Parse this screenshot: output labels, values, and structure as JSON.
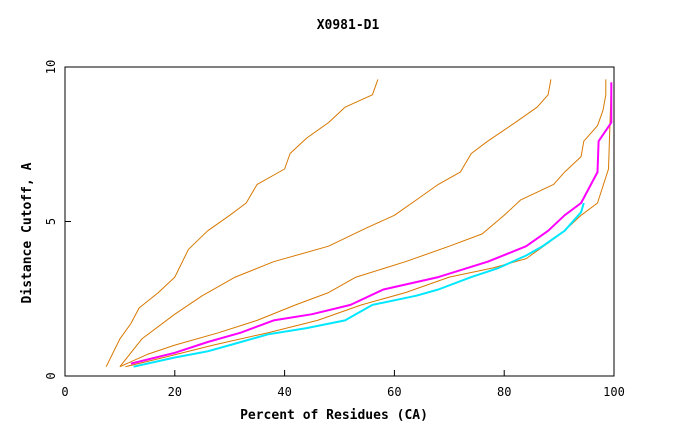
{
  "chart_data": {
    "type": "line",
    "title": "X0981-D1",
    "xlabel": "Percent of Residues (CA)",
    "ylabel": "Distance Cutoff, A",
    "xlim": [
      0,
      100
    ],
    "ylim": [
      0,
      10
    ],
    "x_ticks": [
      0,
      20,
      40,
      60,
      80,
      100
    ],
    "y_ticks": [
      0,
      5,
      10
    ],
    "x_tick_labels": [
      "0",
      "20",
      "40",
      "60",
      "80",
      "100"
    ],
    "y_tick_labels": [
      "0",
      "5",
      "10"
    ],
    "colors": {
      "reference": "#d87800",
      "highlight_1": "#ff00ff",
      "highlight_2": "#00e8ff",
      "axis": "#000000"
    },
    "series": [
      {
        "name": "orange-curve-1",
        "color": "#d87800",
        "points": [
          [
            7.5,
            0.3
          ],
          [
            10,
            1.2
          ],
          [
            12,
            1.7
          ],
          [
            13.5,
            2.2
          ],
          [
            17,
            2.7
          ],
          [
            20,
            3.2
          ],
          [
            22.5,
            4.1
          ],
          [
            26,
            4.7
          ],
          [
            30,
            5.2
          ],
          [
            33,
            5.6
          ],
          [
            35,
            6.2
          ],
          [
            40,
            6.7
          ],
          [
            41,
            7.2
          ],
          [
            44,
            7.7
          ],
          [
            48,
            8.2
          ],
          [
            51,
            8.7
          ],
          [
            56,
            9.1
          ],
          [
            57,
            9.6
          ]
        ]
      },
      {
        "name": "orange-curve-2",
        "color": "#d87800",
        "points": [
          [
            10,
            0.3
          ],
          [
            14,
            1.2
          ],
          [
            20,
            2.0
          ],
          [
            25,
            2.6
          ],
          [
            31,
            3.2
          ],
          [
            38,
            3.7
          ],
          [
            48,
            4.2
          ],
          [
            55,
            4.8
          ],
          [
            60,
            5.2
          ],
          [
            64,
            5.7
          ],
          [
            68,
            6.2
          ],
          [
            72,
            6.6
          ],
          [
            74,
            7.2
          ],
          [
            77,
            7.6
          ],
          [
            82,
            8.2
          ],
          [
            86,
            8.7
          ],
          [
            88,
            9.1
          ],
          [
            88.5,
            9.6
          ]
        ]
      },
      {
        "name": "orange-curve-3",
        "color": "#d87800",
        "points": [
          [
            10,
            0.3
          ],
          [
            15,
            0.7
          ],
          [
            20,
            1.0
          ],
          [
            28,
            1.4
          ],
          [
            35,
            1.8
          ],
          [
            42,
            2.3
          ],
          [
            48,
            2.7
          ],
          [
            53,
            3.2
          ],
          [
            62,
            3.7
          ],
          [
            70,
            4.2
          ],
          [
            76,
            4.6
          ],
          [
            80,
            5.2
          ],
          [
            83,
            5.7
          ],
          [
            89,
            6.2
          ],
          [
            91,
            6.6
          ],
          [
            94,
            7.1
          ],
          [
            94.5,
            7.6
          ],
          [
            97,
            8.1
          ],
          [
            98,
            8.6
          ],
          [
            98.5,
            9.1
          ],
          [
            98.5,
            9.6
          ]
        ]
      },
      {
        "name": "orange-curve-4",
        "color": "#d87800",
        "points": [
          [
            11,
            0.3
          ],
          [
            18,
            0.6
          ],
          [
            27,
            1.0
          ],
          [
            37,
            1.4
          ],
          [
            46,
            1.8
          ],
          [
            54,
            2.3
          ],
          [
            62,
            2.7
          ],
          [
            70,
            3.2
          ],
          [
            78,
            3.5
          ],
          [
            84,
            3.8
          ],
          [
            88,
            4.3
          ],
          [
            91,
            4.7
          ],
          [
            94,
            5.2
          ],
          [
            97,
            5.6
          ],
          [
            99,
            6.7
          ],
          [
            99.5,
            9.5
          ]
        ]
      },
      {
        "name": "magenta-curve",
        "color": "#ff00ff",
        "width": 2,
        "points": [
          [
            12,
            0.4
          ],
          [
            20,
            0.75
          ],
          [
            26,
            1.1
          ],
          [
            32,
            1.4
          ],
          [
            38,
            1.8
          ],
          [
            45,
            2.0
          ],
          [
            52,
            2.3
          ],
          [
            58,
            2.8
          ],
          [
            68,
            3.2
          ],
          [
            77,
            3.7
          ],
          [
            84,
            4.2
          ],
          [
            88,
            4.7
          ],
          [
            91,
            5.2
          ],
          [
            94,
            5.6
          ],
          [
            97,
            6.6
          ],
          [
            97.2,
            7.6
          ],
          [
            99.5,
            8.2
          ],
          [
            99.5,
            9.5
          ]
        ]
      },
      {
        "name": "cyan-curve",
        "color": "#00e8ff",
        "width": 2,
        "points": [
          [
            12.5,
            0.3
          ],
          [
            20,
            0.6
          ],
          [
            26,
            0.8
          ],
          [
            31,
            1.05
          ],
          [
            37,
            1.35
          ],
          [
            44,
            1.55
          ],
          [
            51,
            1.8
          ],
          [
            56,
            2.3
          ],
          [
            64,
            2.6
          ],
          [
            68,
            2.8
          ],
          [
            74,
            3.2
          ],
          [
            79,
            3.5
          ],
          [
            84,
            3.9
          ],
          [
            87,
            4.2
          ],
          [
            91,
            4.7
          ],
          [
            94,
            5.3
          ],
          [
            94.5,
            5.6
          ]
        ]
      }
    ]
  }
}
